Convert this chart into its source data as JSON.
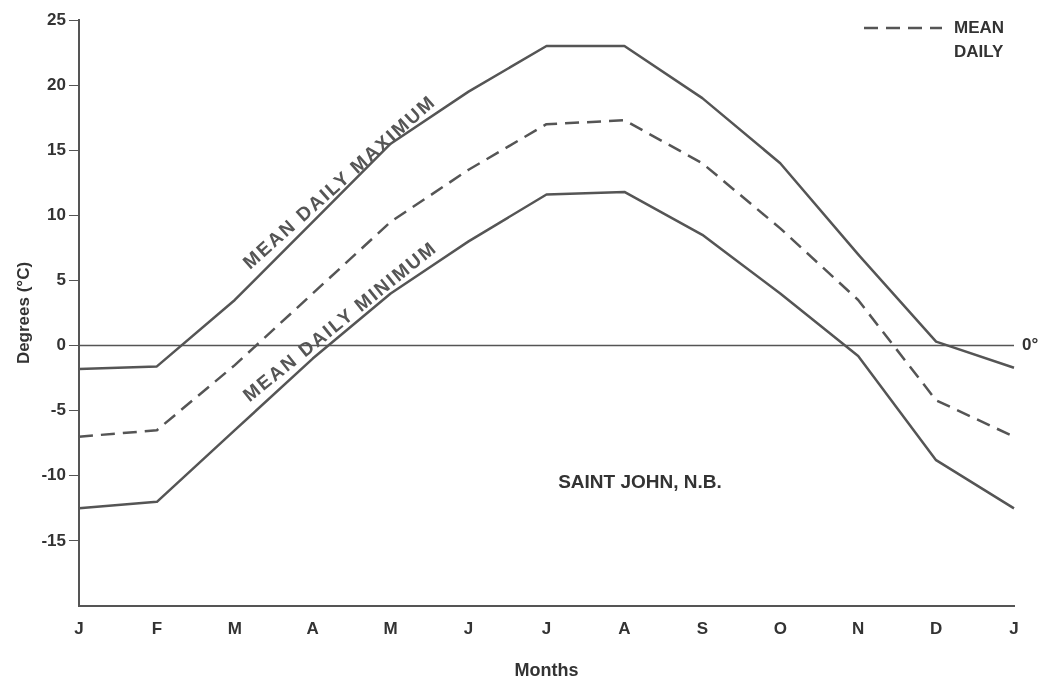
{
  "chart_data": {
    "type": "line",
    "xlabel": "Months",
    "ylabel": "Degrees (°C)",
    "categories": [
      "J",
      "F",
      "M",
      "A",
      "M",
      "J",
      "J",
      "A",
      "S",
      "O",
      "N",
      "D",
      "J"
    ],
    "series": [
      {
        "name": "MEAN DAILY MAXIMUM",
        "color": "#555555",
        "line_style": "solid",
        "values": [
          -1.8,
          -1.6,
          3.5,
          9.5,
          15.5,
          19.5,
          23,
          23,
          19,
          14,
          7,
          0.3,
          -1.7
        ]
      },
      {
        "name": "MEAN DAILY",
        "color": "#555555",
        "line_style": "dashed",
        "values": [
          -7,
          -6.5,
          -1.5,
          4,
          9.5,
          13.5,
          17,
          17.3,
          14,
          9,
          3.5,
          -4.2,
          -7
        ]
      },
      {
        "name": "MEAN DAILY MINIMUM",
        "color": "#555555",
        "line_style": "solid",
        "values": [
          -12.5,
          -12,
          -6.5,
          -1,
          4,
          8,
          11.6,
          11.8,
          8.5,
          4,
          -0.8,
          -8.8,
          -12.5
        ]
      }
    ],
    "ylim": [
      -20,
      25
    ],
    "yticks": [
      -15,
      -10,
      -5,
      0,
      5,
      10,
      15,
      20,
      25
    ],
    "ref_lines": [
      {
        "axis": "y",
        "value": 0,
        "label": "0°",
        "color": "#555555",
        "line_style": "solid"
      }
    ],
    "annotations": [
      "SAINT JOHN, N.B."
    ],
    "grid": false,
    "legend": "top right",
    "marker": "none",
    "line_style": "solid"
  }
}
